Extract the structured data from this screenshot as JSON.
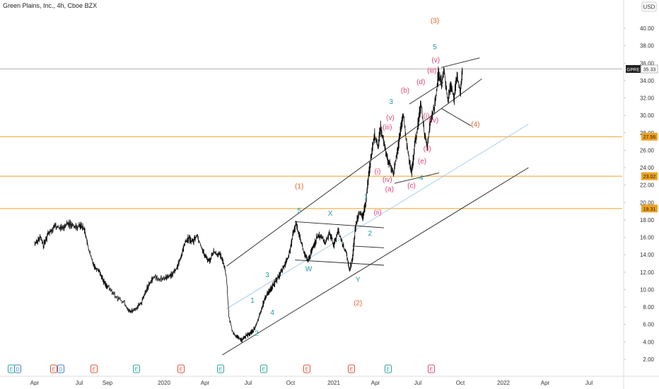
{
  "chart_data": {
    "type": "line",
    "title": "Green Plains, Inc., 4h, Cboe BZX",
    "currency": "USD",
    "grid": false,
    "colors": {
      "price": "#111111",
      "channel": "#222222",
      "midline": "#9cc9ee",
      "level": "#f0a020",
      "last": "#999999",
      "wave_teal": "#1e9aa0",
      "wave_orange": "#e8622a",
      "wave_pink": "#e0447a",
      "event_teal": "#2aa59a",
      "event_red": "#e0533c",
      "event_blue": "#3e7fd0"
    },
    "x_ticks": [
      "Apr",
      "Jul",
      "Sep",
      "2020",
      "Apr",
      "Jul",
      "Oct",
      "2021",
      "Apr",
      "Jul",
      "Oct",
      "2022",
      "Apr",
      "Jul"
    ],
    "y_ticks": [
      "2.00",
      "4.00",
      "6.00",
      "8.00",
      "10.00",
      "12.00",
      "14.00",
      "16.00",
      "18.00",
      "20.00",
      "22.00",
      "24.00",
      "26.00",
      "28.00",
      "30.00",
      "32.00",
      "34.00",
      "36.00",
      "38.00",
      "40.00"
    ],
    "ylim": [
      0.5,
      42
    ],
    "last_price": {
      "ticker": "GPRE",
      "value": 35.33
    },
    "levels": [
      27.56,
      23.02,
      19.31
    ],
    "price_points": [
      [
        0,
        15.3
      ],
      [
        0.12,
        16.0
      ],
      [
        0.2,
        15.0
      ],
      [
        0.3,
        16.5
      ],
      [
        0.45,
        17.3
      ],
      [
        0.6,
        17.0
      ],
      [
        0.75,
        17.6
      ],
      [
        0.9,
        17.2
      ],
      [
        1.05,
        17.5
      ],
      [
        1.2,
        16.7
      ],
      [
        1.3,
        15.0
      ],
      [
        1.42,
        13.6
      ],
      [
        1.55,
        12.6
      ],
      [
        1.7,
        12.2
      ],
      [
        1.85,
        11.0
      ],
      [
        2.0,
        10.3
      ],
      [
        2.15,
        9.2
      ],
      [
        2.3,
        8.4
      ],
      [
        2.4,
        7.4
      ],
      [
        2.5,
        7.8
      ],
      [
        2.6,
        8.5
      ],
      [
        2.7,
        10.2
      ],
      [
        2.8,
        11.4
      ],
      [
        2.95,
        11.2
      ],
      [
        3.1,
        11.5
      ],
      [
        3.25,
        12.0
      ],
      [
        3.4,
        13.5
      ],
      [
        3.5,
        15.3
      ],
      [
        3.6,
        15.9
      ],
      [
        3.7,
        15.5
      ],
      [
        3.8,
        16.3
      ],
      [
        3.9,
        15.0
      ],
      [
        4.0,
        13.8
      ],
      [
        4.1,
        13.3
      ],
      [
        4.2,
        14.4
      ],
      [
        4.35,
        13.9
      ],
      [
        4.45,
        12.7
      ],
      [
        4.5,
        11.0
      ],
      [
        4.55,
        6.8
      ],
      [
        4.65,
        5.0
      ],
      [
        4.75,
        4.5
      ],
      [
        4.85,
        4.2
      ],
      [
        4.95,
        4.7
      ],
      [
        5.05,
        5.0
      ],
      [
        5.15,
        5.5
      ],
      [
        5.25,
        6.8
      ],
      [
        5.35,
        8.4
      ],
      [
        5.45,
        9.6
      ],
      [
        5.55,
        10.2
      ],
      [
        5.65,
        11.0
      ],
      [
        5.75,
        11.8
      ],
      [
        5.85,
        12.8
      ],
      [
        5.95,
        13.8
      ],
      [
        6.05,
        16.2
      ],
      [
        6.12,
        17.6
      ],
      [
        6.22,
        16.0
      ],
      [
        6.3,
        14.3
      ],
      [
        6.4,
        13.2
      ],
      [
        6.5,
        14.6
      ],
      [
        6.6,
        15.9
      ],
      [
        6.7,
        16.2
      ],
      [
        6.8,
        15.3
      ],
      [
        6.9,
        16.6
      ],
      [
        7.0,
        15.1
      ],
      [
        7.1,
        16.8
      ],
      [
        7.2,
        15.4
      ],
      [
        7.3,
        14.1
      ],
      [
        7.38,
        12.2
      ],
      [
        7.45,
        13.8
      ],
      [
        7.52,
        17.2
      ],
      [
        7.6,
        19.0
      ],
      [
        7.68,
        18.2
      ],
      [
        7.75,
        19.5
      ],
      [
        7.82,
        22.6
      ],
      [
        7.9,
        25.5
      ],
      [
        7.98,
        27.8
      ],
      [
        8.05,
        26.3
      ],
      [
        8.12,
        28.6
      ],
      [
        8.2,
        26.7
      ],
      [
        8.27,
        25.0
      ],
      [
        8.35,
        24.2
      ],
      [
        8.42,
        23.2
      ],
      [
        8.5,
        25.6
      ],
      [
        8.57,
        27.5
      ],
      [
        8.65,
        30.2
      ],
      [
        8.72,
        27.2
      ],
      [
        8.8,
        24.6
      ],
      [
        8.85,
        23.3
      ],
      [
        8.92,
        26.5
      ],
      [
        9.0,
        28.9
      ],
      [
        9.07,
        31.5
      ],
      [
        9.15,
        28.0
      ],
      [
        9.22,
        26.6
      ],
      [
        9.3,
        29.5
      ],
      [
        9.4,
        31.2
      ],
      [
        9.48,
        34.7
      ],
      [
        9.55,
        33.8
      ],
      [
        9.62,
        34.9
      ],
      [
        9.7,
        31.7
      ],
      [
        9.78,
        33.6
      ],
      [
        9.85,
        31.9
      ],
      [
        9.92,
        34.4
      ],
      [
        10.0,
        32.8
      ],
      [
        10.05,
        35.33
      ]
    ],
    "channel_lines": [
      {
        "from": [
          4.5,
          12.7
        ],
        "to": [
          10.5,
          34.2
        ]
      },
      {
        "from": [
          4.4,
          2.5
        ],
        "to": [
          11.6,
          24.0
        ]
      },
      {
        "from": [
          4.5,
          7.8
        ],
        "to": [
          11.6,
          29.0
        ]
      },
      {
        "from": [
          6.1,
          17.8
        ],
        "to": [
          8.2,
          17.1
        ]
      },
      {
        "from": [
          6.1,
          13.4
        ],
        "to": [
          8.2,
          12.8
        ]
      },
      {
        "from": [
          8.8,
          31.3
        ],
        "to": [
          9.6,
          33.8
        ]
      },
      {
        "from": [
          8.45,
          22.2
        ],
        "to": [
          9.5,
          23.4
        ]
      },
      {
        "from": [
          9.55,
          35.5
        ],
        "to": [
          10.45,
          36.6
        ]
      },
      {
        "from": [
          9.55,
          30.8
        ],
        "to": [
          10.25,
          28.8
        ]
      },
      {
        "from": [
          7.45,
          15.0
        ],
        "to": [
          8.2,
          14.8
        ]
      }
    ],
    "wave_labels": [
      {
        "text": "(3)",
        "x": 9.4,
        "y": 40.6,
        "color": "wave_orange"
      },
      {
        "text": "5",
        "x": 9.4,
        "y": 37.6,
        "color": "wave_teal"
      },
      {
        "text": "(v)",
        "x": 9.42,
        "y": 36.1,
        "color": "wave_pink"
      },
      {
        "text": "(iii)",
        "x": 9.33,
        "y": 34.9,
        "color": "wave_pink"
      },
      {
        "text": "(d)",
        "x": 9.07,
        "y": 33.6,
        "color": "wave_pink"
      },
      {
        "text": "(b)",
        "x": 8.7,
        "y": 32.6,
        "color": "wave_pink"
      },
      {
        "text": "3",
        "x": 8.37,
        "y": 31.3,
        "color": "wave_teal"
      },
      {
        "text": "(v)",
        "x": 8.35,
        "y": 29.5,
        "color": "wave_pink"
      },
      {
        "text": "(iii)",
        "x": 8.28,
        "y": 28.4,
        "color": "wave_pink"
      },
      {
        "text": "(i)",
        "x": 9.2,
        "y": 29.7,
        "color": "wave_pink"
      },
      {
        "text": "(iv)",
        "x": 9.37,
        "y": 29.2,
        "color": "wave_pink"
      },
      {
        "text": "(4)",
        "x": 10.35,
        "y": 28.7,
        "color": "wave_orange"
      },
      {
        "text": "(ii)",
        "x": 9.22,
        "y": 25.9,
        "color": "wave_pink"
      },
      {
        "text": "(e)",
        "x": 9.1,
        "y": 24.5,
        "color": "wave_pink"
      },
      {
        "text": "(i)",
        "x": 8.05,
        "y": 23.3,
        "color": "wave_pink"
      },
      {
        "text": "(iv)",
        "x": 8.28,
        "y": 22.4,
        "color": "wave_pink"
      },
      {
        "text": "4",
        "x": 9.08,
        "y": 22.6,
        "color": "wave_teal"
      },
      {
        "text": "(c)",
        "x": 8.85,
        "y": 21.7,
        "color": "wave_pink"
      },
      {
        "text": "(a)",
        "x": 8.33,
        "y": 21.3,
        "color": "wave_pink"
      },
      {
        "text": "(1)",
        "x": 6.2,
        "y": 21.6,
        "color": "wave_orange"
      },
      {
        "text": "1",
        "x": 7.77,
        "y": 20.4,
        "color": "wave_teal"
      },
      {
        "text": "(ii)",
        "x": 8.05,
        "y": 18.6,
        "color": "wave_pink"
      },
      {
        "text": "5",
        "x": 6.2,
        "y": 18.8,
        "color": "wave_teal"
      },
      {
        "text": "X",
        "x": 6.92,
        "y": 18.5,
        "color": "wave_teal"
      },
      {
        "text": "2",
        "x": 7.87,
        "y": 16.2,
        "color": "wave_teal"
      },
      {
        "text": "W",
        "x": 6.42,
        "y": 12.1,
        "color": "wave_teal"
      },
      {
        "text": "3",
        "x": 5.45,
        "y": 11.4,
        "color": "wave_teal"
      },
      {
        "text": "Y",
        "x": 7.58,
        "y": 10.9,
        "color": "wave_teal"
      },
      {
        "text": "1",
        "x": 5.1,
        "y": 8.5,
        "color": "wave_teal"
      },
      {
        "text": "(2)",
        "x": 7.58,
        "y": 8.2,
        "color": "wave_orange"
      },
      {
        "text": "4",
        "x": 5.57,
        "y": 7.1,
        "color": "wave_teal"
      },
      {
        "text": "2",
        "x": 5.2,
        "y": 4.7,
        "color": "wave_teal"
      }
    ],
    "events": [
      {
        "text": "E",
        "kind": "teal"
      },
      {
        "text": "D",
        "kind": "blue"
      },
      {
        "text": "E",
        "kind": "red"
      },
      {
        "text": "D",
        "kind": "blue"
      },
      {
        "text": "E",
        "kind": "red"
      },
      {
        "text": "E",
        "kind": "teal"
      },
      {
        "text": "E",
        "kind": "red"
      },
      {
        "text": "E",
        "kind": "teal"
      },
      {
        "text": "E",
        "kind": "teal"
      },
      {
        "text": "E",
        "kind": "red"
      },
      {
        "text": "E",
        "kind": "red"
      },
      {
        "text": "E",
        "kind": "teal"
      },
      {
        "text": "E",
        "kind": "pink"
      }
    ]
  }
}
